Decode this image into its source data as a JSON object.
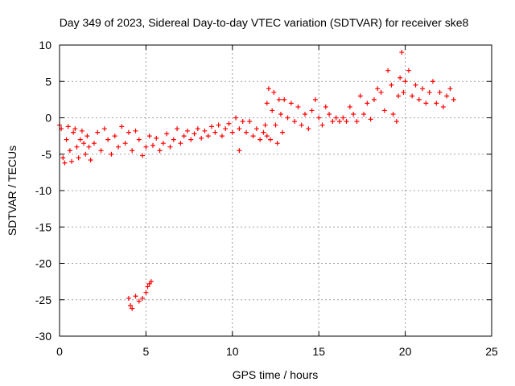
{
  "chart_data": {
    "type": "scatter",
    "title": "Day 349 of 2023, Sidereal Day-to-day VTEC variation (SDTVAR) for receiver ske8",
    "xlabel": "GPS time / hours",
    "ylabel": "SDTVAR / TECUs",
    "xlim": [
      0,
      25
    ],
    "ylim": [
      -30,
      10
    ],
    "xticks": [
      0,
      5,
      10,
      15,
      20,
      25
    ],
    "yticks": [
      10,
      5,
      0,
      -5,
      -10,
      -15,
      -20,
      -25,
      -30
    ],
    "grid": true,
    "marker": "+",
    "series_color": "#ff0000",
    "series": [
      {
        "name": "SDTVAR",
        "points": [
          [
            0.0,
            -1.0
          ],
          [
            0.1,
            -1.5
          ],
          [
            0.2,
            -5.5
          ],
          [
            0.3,
            -6.2
          ],
          [
            0.4,
            -3.0
          ],
          [
            0.5,
            -1.2
          ],
          [
            0.6,
            -4.5
          ],
          [
            0.7,
            -6.0
          ],
          [
            0.8,
            -2.0
          ],
          [
            0.9,
            -1.5
          ],
          [
            1.0,
            -4.0
          ],
          [
            1.1,
            -5.5
          ],
          [
            1.2,
            -3.0
          ],
          [
            1.3,
            -1.8
          ],
          [
            1.4,
            -3.5
          ],
          [
            1.5,
            -5.0
          ],
          [
            1.6,
            -2.5
          ],
          [
            1.7,
            -4.0
          ],
          [
            1.8,
            -5.8
          ],
          [
            2.0,
            -3.5
          ],
          [
            2.2,
            -2.0
          ],
          [
            2.4,
            -4.5
          ],
          [
            2.6,
            -1.5
          ],
          [
            2.8,
            -3.0
          ],
          [
            3.0,
            -5.0
          ],
          [
            3.2,
            -2.5
          ],
          [
            3.4,
            -4.0
          ],
          [
            3.6,
            -1.2
          ],
          [
            3.8,
            -3.5
          ],
          [
            4.0,
            -2.0
          ],
          [
            4.2,
            -4.5
          ],
          [
            4.4,
            -1.8
          ],
          [
            4.6,
            -3.0
          ],
          [
            4.8,
            -5.2
          ],
          [
            5.0,
            -4.0
          ],
          [
            5.2,
            -2.5
          ],
          [
            5.4,
            -3.8
          ],
          [
            5.6,
            -2.8
          ],
          [
            5.8,
            -4.5
          ],
          [
            6.0,
            -3.5
          ],
          [
            6.2,
            -2.2
          ],
          [
            6.4,
            -4.0
          ],
          [
            6.6,
            -3.0
          ],
          [
            6.8,
            -1.5
          ],
          [
            7.0,
            -3.5
          ],
          [
            7.2,
            -2.5
          ],
          [
            7.4,
            -1.8
          ],
          [
            7.6,
            -3.0
          ],
          [
            7.8,
            -2.2
          ],
          [
            8.0,
            -1.5
          ],
          [
            8.2,
            -2.8
          ],
          [
            8.4,
            -1.8
          ],
          [
            8.6,
            -2.5
          ],
          [
            8.8,
            -1.2
          ],
          [
            9.0,
            -2.0
          ],
          [
            9.2,
            -1.0
          ],
          [
            9.4,
            -2.5
          ],
          [
            9.6,
            -1.5
          ],
          [
            9.8,
            -0.8
          ],
          [
            10.0,
            -2.0
          ],
          [
            10.2,
            0.0
          ],
          [
            10.4,
            -1.5
          ],
          [
            10.4,
            -4.5
          ],
          [
            10.6,
            -0.5
          ],
          [
            10.8,
            -2.0
          ],
          [
            11.0,
            -0.5
          ],
          [
            11.2,
            -2.5
          ],
          [
            11.4,
            -1.5
          ],
          [
            11.6,
            -3.0
          ],
          [
            11.8,
            -2.0
          ],
          [
            11.9,
            -1.0
          ],
          [
            12.0,
            2.0
          ],
          [
            12.0,
            -2.5
          ],
          [
            12.1,
            4.0
          ],
          [
            12.2,
            -3.0
          ],
          [
            12.3,
            1.0
          ],
          [
            12.4,
            3.5
          ],
          [
            12.5,
            -1.0
          ],
          [
            12.6,
            -3.5
          ],
          [
            12.7,
            2.5
          ],
          [
            12.8,
            0.5
          ],
          [
            12.9,
            -2.0
          ],
          [
            13.0,
            2.5
          ],
          [
            13.2,
            0.0
          ],
          [
            13.4,
            2.0
          ],
          [
            13.6,
            -0.5
          ],
          [
            13.8,
            1.5
          ],
          [
            14.0,
            -1.0
          ],
          [
            14.2,
            0.5
          ],
          [
            14.4,
            -1.5
          ],
          [
            14.6,
            1.0
          ],
          [
            14.8,
            2.5
          ],
          [
            15.0,
            0.0
          ],
          [
            15.2,
            -1.0
          ],
          [
            15.4,
            1.5
          ],
          [
            15.6,
            0.5
          ],
          [
            15.8,
            -0.5
          ],
          [
            16.0,
            0.0
          ],
          [
            16.2,
            -0.5
          ],
          [
            16.4,
            0.0
          ],
          [
            16.6,
            -0.5
          ],
          [
            16.8,
            1.5
          ],
          [
            17.0,
            0.5
          ],
          [
            17.2,
            -0.5
          ],
          [
            17.4,
            3.0
          ],
          [
            17.6,
            0.5
          ],
          [
            17.8,
            2.0
          ],
          [
            18.0,
            -0.2
          ],
          [
            18.2,
            2.5
          ],
          [
            18.4,
            4.0
          ],
          [
            18.6,
            3.5
          ],
          [
            18.8,
            1.0
          ],
          [
            19.0,
            6.5
          ],
          [
            19.2,
            4.5
          ],
          [
            19.3,
            0.5
          ],
          [
            19.5,
            -0.5
          ],
          [
            19.6,
            3.0
          ],
          [
            19.7,
            5.5
          ],
          [
            19.8,
            9.0
          ],
          [
            19.9,
            3.5
          ],
          [
            20.0,
            5.0
          ],
          [
            20.2,
            6.5
          ],
          [
            20.4,
            3.0
          ],
          [
            20.6,
            4.5
          ],
          [
            20.8,
            2.5
          ],
          [
            21.0,
            4.0
          ],
          [
            21.2,
            2.0
          ],
          [
            21.4,
            3.5
          ],
          [
            21.6,
            5.0
          ],
          [
            21.8,
            2.0
          ],
          [
            22.0,
            3.5
          ],
          [
            22.2,
            1.5
          ],
          [
            22.4,
            3.0
          ],
          [
            22.6,
            4.0
          ],
          [
            22.8,
            2.5
          ],
          [
            4.0,
            -24.8
          ],
          [
            4.1,
            -25.8
          ],
          [
            4.2,
            -26.2
          ],
          [
            4.4,
            -24.5
          ],
          [
            4.6,
            -25.2
          ],
          [
            4.8,
            -24.8
          ],
          [
            5.0,
            -24.0
          ],
          [
            5.1,
            -23.2
          ],
          [
            5.2,
            -22.8
          ],
          [
            5.3,
            -22.5
          ]
        ]
      }
    ]
  }
}
